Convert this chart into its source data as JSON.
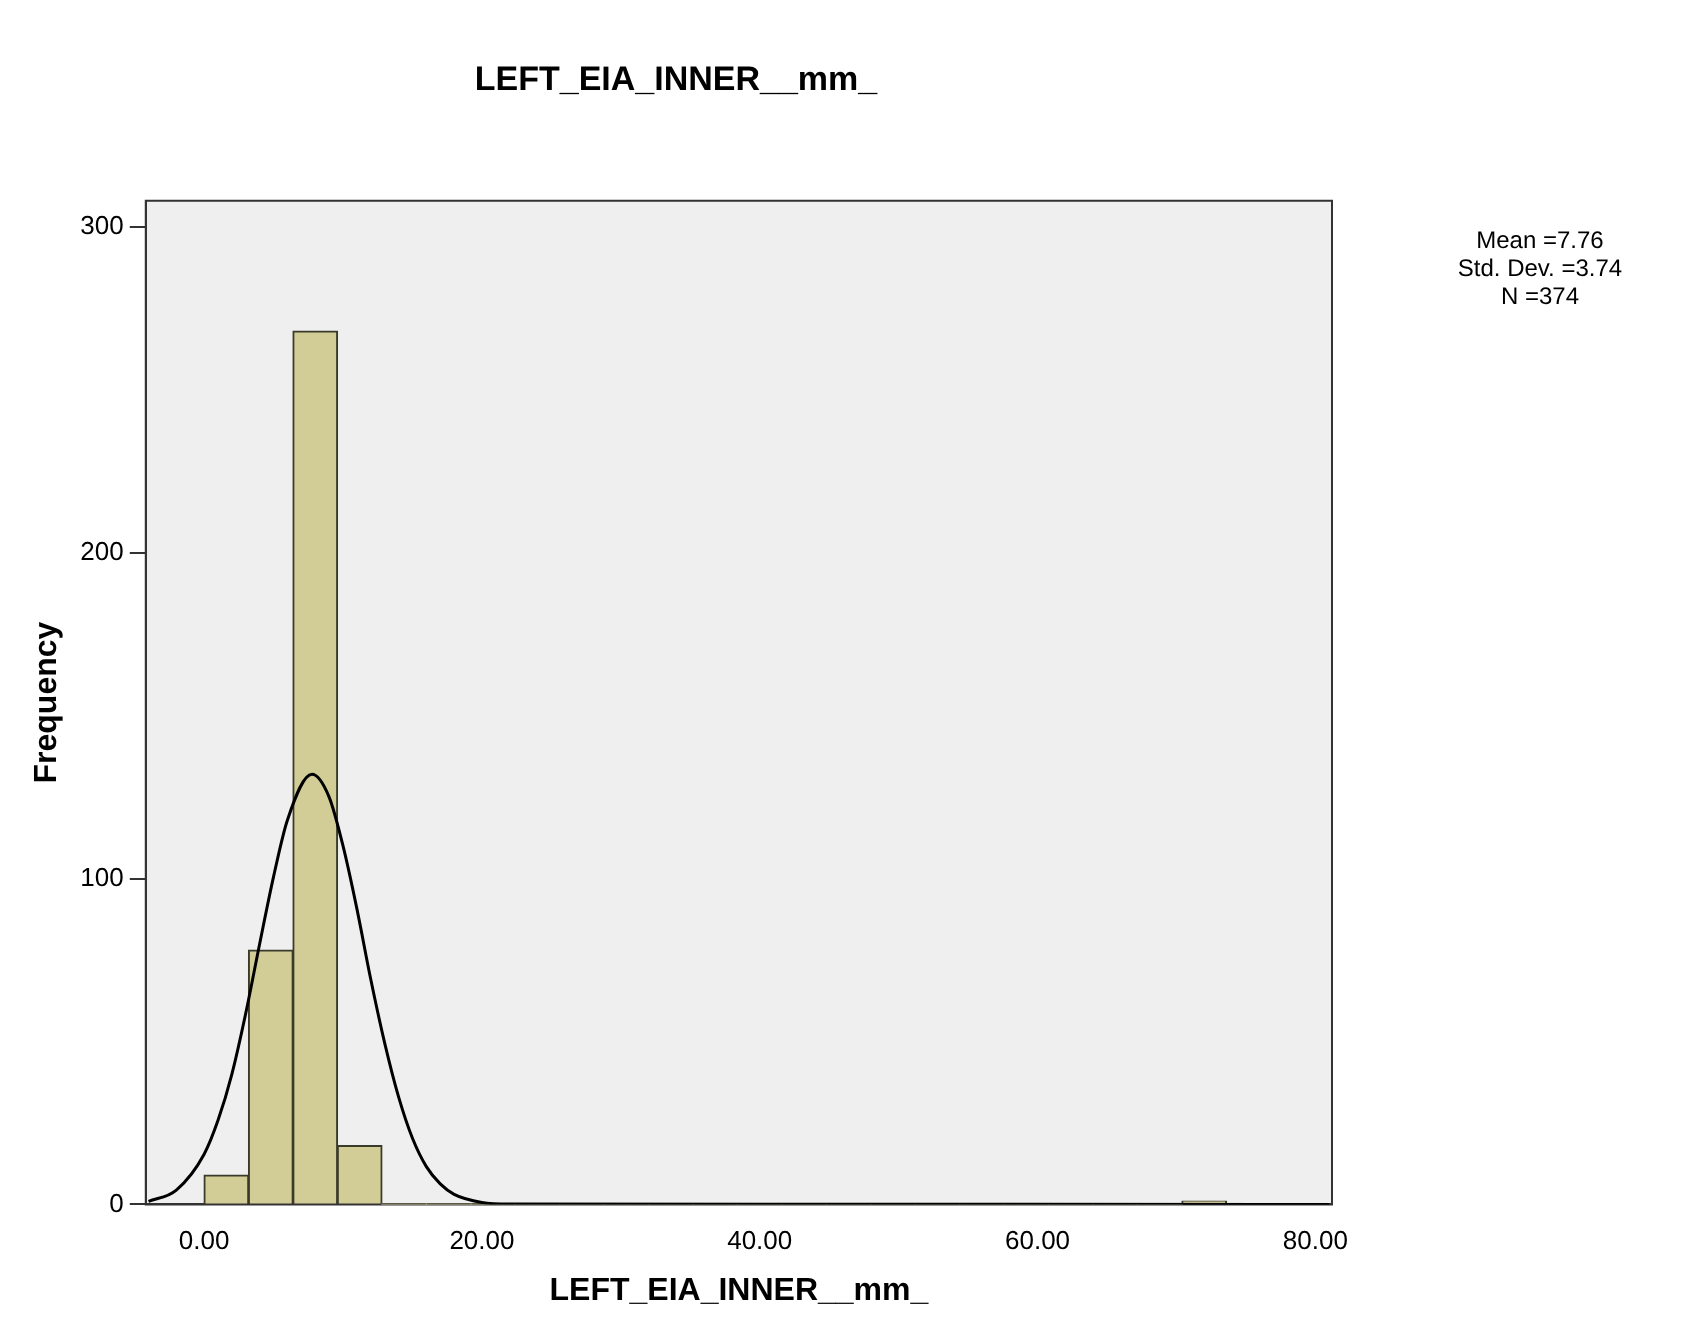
{
  "chart_data": {
    "type": "histogram",
    "title": "LEFT_EIA_INNER__mm_",
    "xlabel": "LEFT_EIA_INNER__mm_",
    "ylabel": "Frequency",
    "bins": [
      0,
      3.2,
      6.4,
      9.6,
      12.8,
      16,
      19.2,
      22.4,
      25.6,
      28.8,
      32,
      35.2,
      38.4,
      41.6,
      44.8,
      48,
      51.2,
      54.4,
      57.6,
      60.8,
      64,
      67.2,
      70.4,
      73.6
    ],
    "values": [
      9,
      78,
      268,
      18,
      0,
      0,
      0,
      0,
      0,
      0,
      0,
      0,
      0,
      0,
      0,
      0,
      0,
      0,
      0,
      0,
      0,
      0,
      1
    ],
    "color": "#d2cc96",
    "series": [
      {
        "type": "line",
        "color": "#000000",
        "x": [
          -4,
          -2,
          0,
          1,
          2,
          3,
          4,
          5,
          6,
          7.76,
          9,
          10,
          11,
          12,
          13,
          14,
          15,
          16,
          17,
          18,
          20,
          22,
          81
        ],
        "values": [
          0.9,
          4.4,
          15.4,
          25.8,
          40,
          58.7,
          80,
          100.6,
          118,
          132,
          125,
          110,
          90.7,
          69,
          49.5,
          33,
          20.3,
          11.6,
          6.3,
          3.1,
          0.6,
          0.1,
          0
        ]
      }
    ],
    "xlim": [
      -4.2,
      81.2
    ],
    "xticks": [
      {
        "value": 0,
        "label": "0.00"
      },
      {
        "value": 20,
        "label": "20.00"
      },
      {
        "value": 40,
        "label": "40.00"
      },
      {
        "value": 60,
        "label": "60.00"
      },
      {
        "value": 80,
        "label": "80.00"
      }
    ],
    "ylim": [
      0,
      308
    ],
    "yticks": [
      0,
      100,
      200,
      300
    ],
    "grid": false,
    "legend": false,
    "marker": "none",
    "line_style": "solid",
    "annotations": [
      "Mean =7.76",
      "Std. Dev. =3.74",
      "N =374"
    ]
  }
}
